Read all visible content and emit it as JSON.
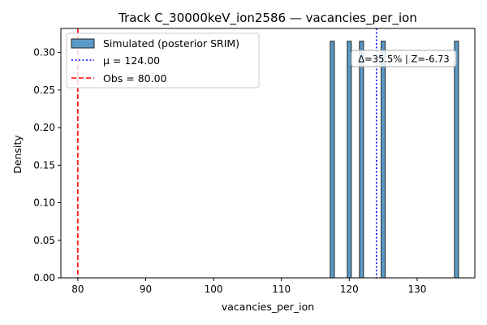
{
  "chart_data": {
    "type": "bar",
    "title": "Track C_30000keV_ion2586 — vacancies_per_ion",
    "xlabel": "vacancies_per_ion",
    "ylabel": "Density",
    "xlim": [
      77.5,
      138.5
    ],
    "ylim": [
      0,
      0.332
    ],
    "x_ticks": [
      80,
      90,
      100,
      110,
      120,
      130
    ],
    "y_ticks": [
      0.0,
      0.05,
      0.1,
      0.15,
      0.2,
      0.25,
      0.3
    ],
    "grid": false,
    "legend_placement": "top-left",
    "series": [
      {
        "name": "Simulated (posterior SRIM)",
        "kind": "histogram",
        "bin_width": 0.6,
        "bins": [
          {
            "x": 117.5,
            "density": 0.315
          },
          {
            "x": 120.0,
            "density": 0.315
          },
          {
            "x": 121.8,
            "density": 0.315
          },
          {
            "x": 125.0,
            "density": 0.315
          },
          {
            "x": 135.8,
            "density": 0.315
          }
        ],
        "color": "#5a9ac8",
        "edge_color": "#222222"
      }
    ],
    "reference_lines": [
      {
        "name": "μ = 124.00",
        "x": 124.0,
        "style": "dotted",
        "color": "#0000ff"
      },
      {
        "name": "Obs = 80.00",
        "x": 80.0,
        "style": "dashed",
        "color": "#ff0000"
      }
    ],
    "annotation": "Δ=35.5% | Z=-6.73"
  }
}
